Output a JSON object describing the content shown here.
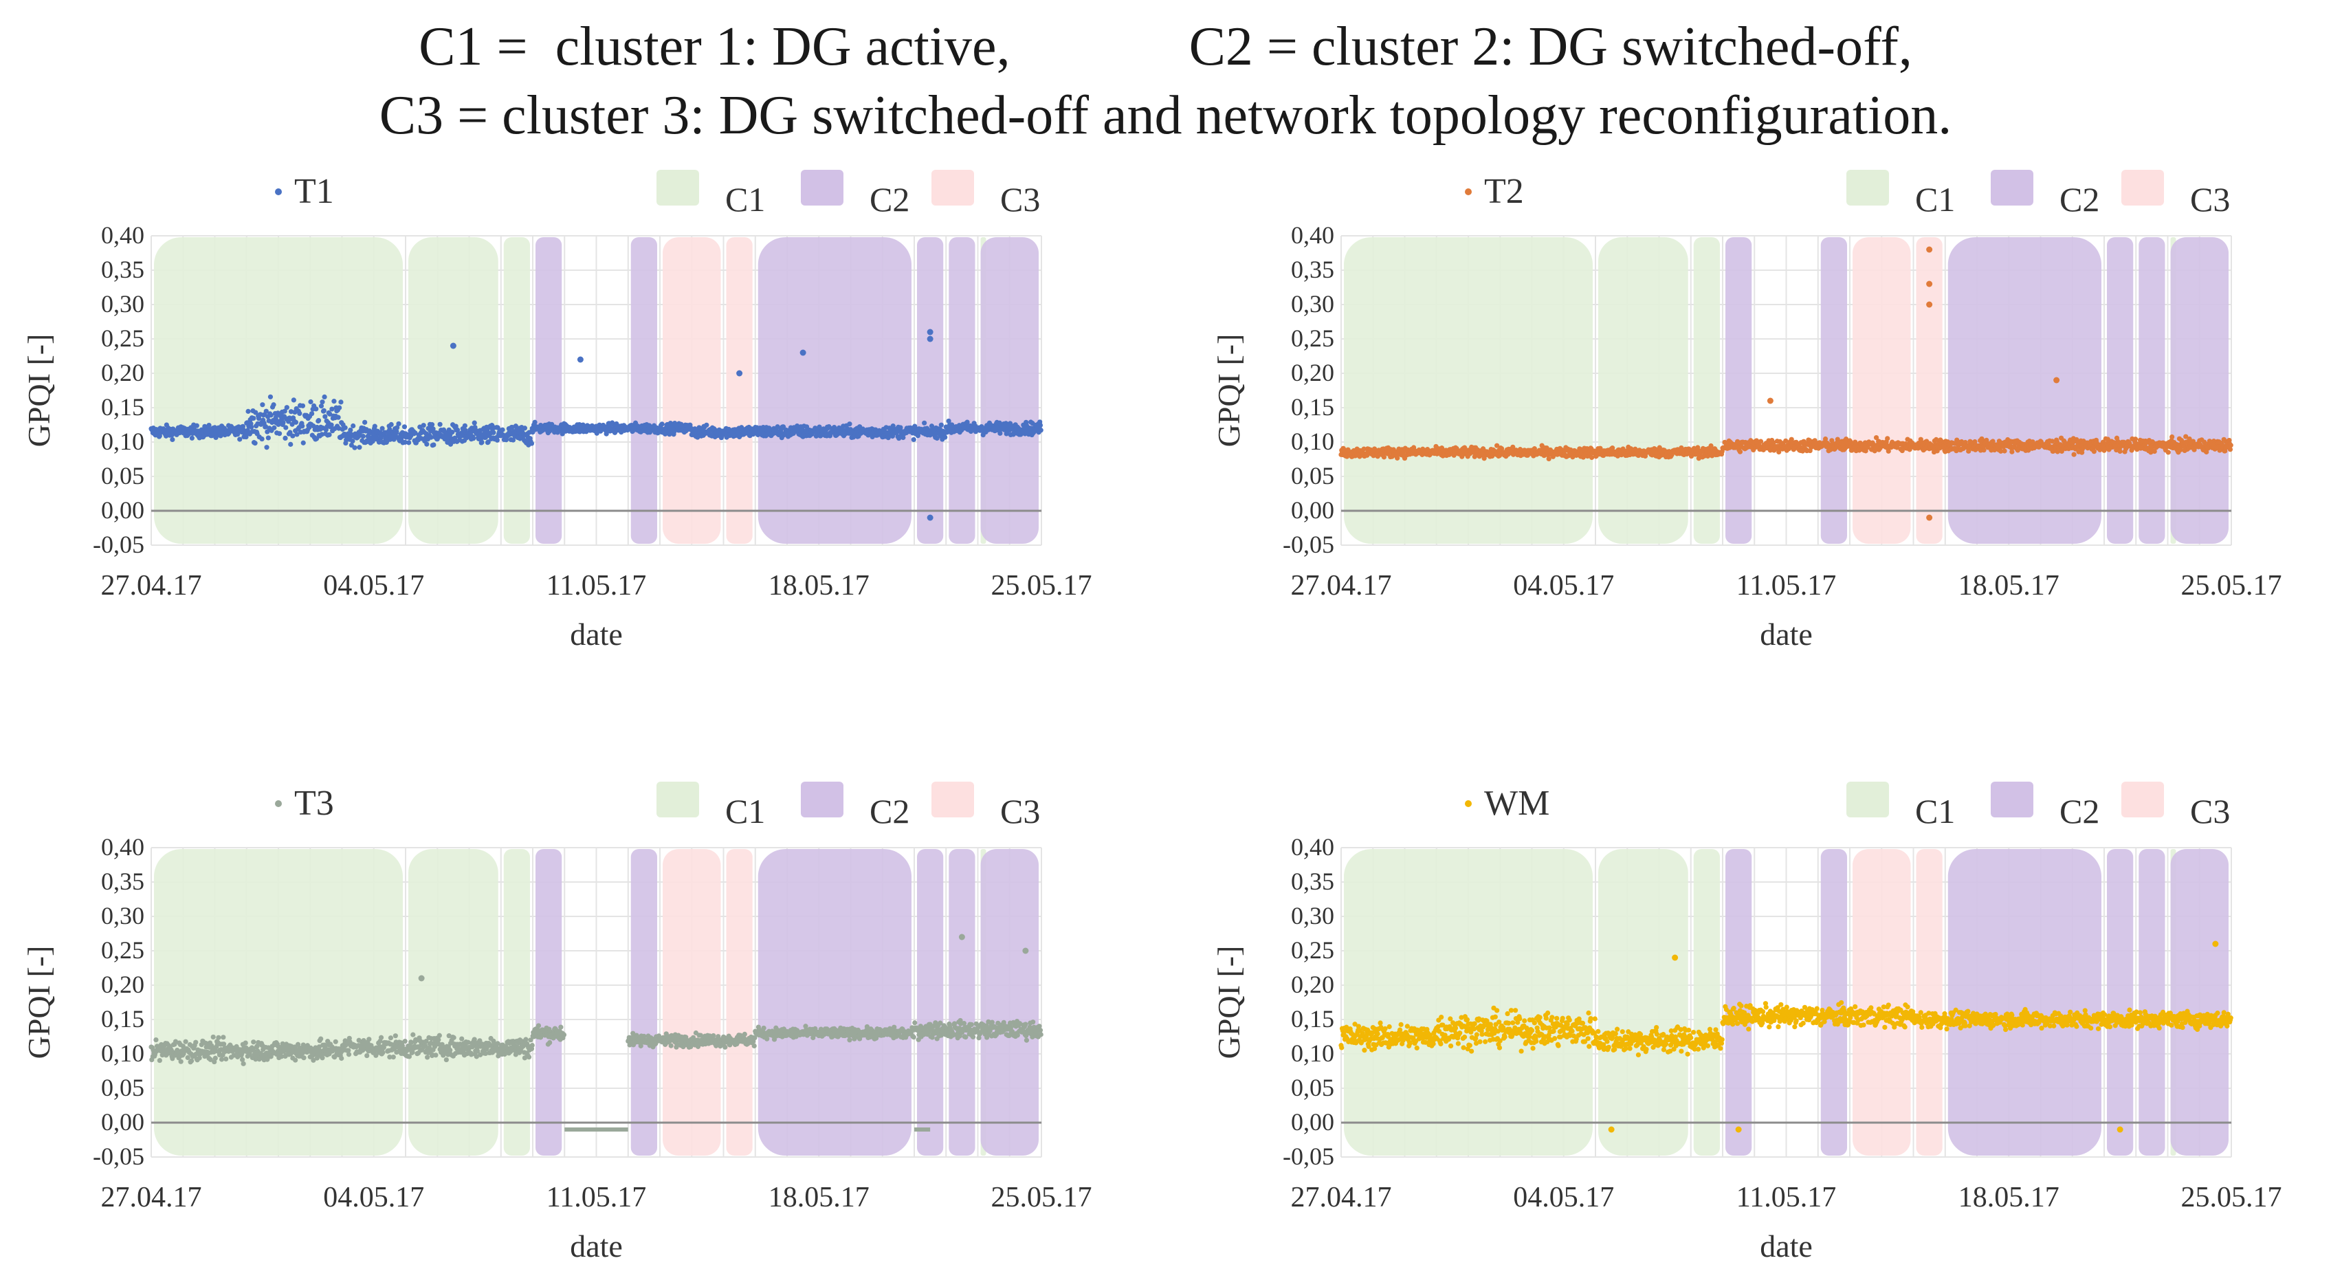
{
  "title": {
    "line1_part1": "C1 =  cluster 1: DG active,",
    "line1_part2": "C2 = cluster 2: DG switched-off,",
    "line2": "C3 = cluster 3: DG switched-off and network topology reconfiguration."
  },
  "legend_bands": [
    {
      "name": "C1",
      "color": "#e2efd9"
    },
    {
      "name": "C2",
      "color": "#d2c1e6"
    },
    {
      "name": "C3",
      "color": "#fde0e0"
    }
  ],
  "chart_data": [
    {
      "type": "scatter",
      "series_name": "T1",
      "color": "#4a72c4",
      "xlabel": "date",
      "ylabel": "GPQI [-]",
      "ylim": [
        -0.05,
        0.4
      ],
      "y_ticks": [
        "-0,05",
        "0,00",
        "0,05",
        "0,10",
        "0,15",
        "0,20",
        "0,25",
        "0,30",
        "0,35",
        "0,40"
      ],
      "x_ticks": [
        "27.04.17",
        "04.05.17",
        "11.05.17",
        "18.05.17",
        "25.05.17"
      ],
      "grid": true,
      "legend": "top",
      "clusters": [
        {
          "cluster": "C1",
          "from": "27.04.17",
          "to": "05.05.17"
        },
        {
          "cluster": "C1",
          "from": "05.05.17",
          "to": "08.05.17"
        },
        {
          "cluster": "C1",
          "from": "08.05.17",
          "to": "09.05.17"
        },
        {
          "cluster": "C2",
          "from": "09.05.17",
          "to": "10.05.17"
        },
        {
          "cluster": "C2",
          "from": "12.05.17",
          "to": "13.05.17"
        },
        {
          "cluster": "C3",
          "from": "13.05.17",
          "to": "15.05.17"
        },
        {
          "cluster": "C3",
          "from": "15.05.17",
          "to": "16.05.17"
        },
        {
          "cluster": "C2",
          "from": "16.05.17",
          "to": "21.05.17"
        },
        {
          "cluster": "C2",
          "from": "21.05.17",
          "to": "22.05.17"
        },
        {
          "cluster": "C2",
          "from": "22.05.17",
          "to": "23.05.17"
        },
        {
          "cluster": "C1",
          "from": "23.05.17",
          "to": "23.05.17"
        },
        {
          "cluster": "C2",
          "from": "23.05.17",
          "to": "25.05.17"
        }
      ],
      "segments": [
        {
          "from": "27.04.17",
          "to": "30.04.17",
          "level": 0.115,
          "spread": 0.015
        },
        {
          "from": "30.04.17",
          "to": "03.05.17",
          "level": 0.13,
          "spread": 0.05
        },
        {
          "from": "03.05.17",
          "to": "09.05.17",
          "level": 0.11,
          "spread": 0.025
        },
        {
          "from": "09.05.17",
          "to": "14.05.17",
          "level": 0.12,
          "spread": 0.012
        },
        {
          "from": "14.05.17",
          "to": "22.05.17",
          "level": 0.115,
          "spread": 0.015
        },
        {
          "from": "22.05.17",
          "to": "25.05.17",
          "level": 0.12,
          "spread": 0.015
        }
      ],
      "outliers": [
        {
          "date": "06.05.17",
          "value": 0.24
        },
        {
          "date": "10.05.17",
          "value": 0.22
        },
        {
          "date": "15.05.17",
          "value": 0.2
        },
        {
          "date": "17.05.17",
          "value": 0.23
        },
        {
          "date": "21.05.17",
          "value": 0.26
        },
        {
          "date": "21.05.17",
          "value": 0.25
        },
        {
          "date": "21.05.17",
          "value": -0.01
        }
      ]
    },
    {
      "type": "scatter",
      "series_name": "T2",
      "color": "#e07b3a",
      "xlabel": "date",
      "ylabel": "GPQI [-]",
      "ylim": [
        -0.05,
        0.4
      ],
      "y_ticks": [
        "-0,05",
        "0,00",
        "0,05",
        "0,10",
        "0,15",
        "0,20",
        "0,25",
        "0,30",
        "0,35",
        "0,40"
      ],
      "x_ticks": [
        "27.04.17",
        "04.05.17",
        "11.05.17",
        "18.05.17",
        "25.05.17"
      ],
      "grid": true,
      "legend": "top",
      "clusters": [
        {
          "cluster": "C1",
          "from": "27.04.17",
          "to": "05.05.17"
        },
        {
          "cluster": "C1",
          "from": "05.05.17",
          "to": "08.05.17"
        },
        {
          "cluster": "C1",
          "from": "08.05.17",
          "to": "09.05.17"
        },
        {
          "cluster": "C2",
          "from": "09.05.17",
          "to": "10.05.17"
        },
        {
          "cluster": "C2",
          "from": "12.05.17",
          "to": "13.05.17"
        },
        {
          "cluster": "C3",
          "from": "13.05.17",
          "to": "15.05.17"
        },
        {
          "cluster": "C3",
          "from": "15.05.17",
          "to": "16.05.17"
        },
        {
          "cluster": "C2",
          "from": "16.05.17",
          "to": "21.05.17"
        },
        {
          "cluster": "C2",
          "from": "21.05.17",
          "to": "22.05.17"
        },
        {
          "cluster": "C2",
          "from": "22.05.17",
          "to": "23.05.17"
        },
        {
          "cluster": "C1",
          "from": "23.05.17",
          "to": "23.05.17"
        },
        {
          "cluster": "C2",
          "from": "23.05.17",
          "to": "25.05.17"
        }
      ],
      "segments": [
        {
          "from": "27.04.17",
          "to": "09.05.17",
          "level": 0.085,
          "spread": 0.012
        },
        {
          "from": "09.05.17",
          "to": "15.05.17",
          "level": 0.095,
          "spread": 0.015
        },
        {
          "from": "15.05.17",
          "to": "25.05.17",
          "level": 0.095,
          "spread": 0.015
        }
      ],
      "outliers": [
        {
          "date": "15.05.17",
          "value": 0.38
        },
        {
          "date": "15.05.17",
          "value": 0.33
        },
        {
          "date": "15.05.17",
          "value": 0.3
        },
        {
          "date": "15.05.17",
          "value": -0.01
        },
        {
          "date": "19.05.17",
          "value": 0.19
        },
        {
          "date": "10.05.17",
          "value": 0.16
        }
      ]
    },
    {
      "type": "scatter",
      "series_name": "T3",
      "color": "#9aa89a",
      "xlabel": "date",
      "ylabel": "GPQI [-]",
      "ylim": [
        -0.05,
        0.4
      ],
      "y_ticks": [
        "-0,05",
        "0,00",
        "0,05",
        "0,10",
        "0,15",
        "0,20",
        "0,25",
        "0,30",
        "0,35",
        "0,40"
      ],
      "x_ticks": [
        "27.04.17",
        "04.05.17",
        "11.05.17",
        "18.05.17",
        "25.05.17"
      ],
      "grid": true,
      "legend": "top",
      "clusters": [
        {
          "cluster": "C1",
          "from": "27.04.17",
          "to": "05.05.17"
        },
        {
          "cluster": "C1",
          "from": "05.05.17",
          "to": "08.05.17"
        },
        {
          "cluster": "C1",
          "from": "08.05.17",
          "to": "09.05.17"
        },
        {
          "cluster": "C2",
          "from": "09.05.17",
          "to": "10.05.17"
        },
        {
          "cluster": "C2",
          "from": "12.05.17",
          "to": "13.05.17"
        },
        {
          "cluster": "C3",
          "from": "13.05.17",
          "to": "15.05.17"
        },
        {
          "cluster": "C3",
          "from": "15.05.17",
          "to": "16.05.17"
        },
        {
          "cluster": "C2",
          "from": "16.05.17",
          "to": "21.05.17"
        },
        {
          "cluster": "C2",
          "from": "21.05.17",
          "to": "22.05.17"
        },
        {
          "cluster": "C2",
          "from": "22.05.17",
          "to": "23.05.17"
        },
        {
          "cluster": "C1",
          "from": "23.05.17",
          "to": "23.05.17"
        },
        {
          "cluster": "C2",
          "from": "23.05.17",
          "to": "25.05.17"
        }
      ],
      "segments": [
        {
          "from": "27.04.17",
          "to": "03.05.17",
          "level": 0.105,
          "spread": 0.025
        },
        {
          "from": "03.05.17",
          "to": "09.05.17",
          "level": 0.11,
          "spread": 0.025
        },
        {
          "from": "09.05.17",
          "to": "10.05.17",
          "level": 0.13,
          "spread": 0.02
        },
        {
          "from": "12.05.17",
          "to": "16.05.17",
          "level": 0.12,
          "spread": 0.015
        },
        {
          "from": "16.05.17",
          "to": "21.05.17",
          "level": 0.13,
          "spread": 0.013
        },
        {
          "from": "21.05.17",
          "to": "25.05.17",
          "level": 0.135,
          "spread": 0.02
        }
      ],
      "flat_runs": [
        {
          "from": "10.05.17",
          "to": "12.05.17",
          "value": -0.01
        },
        {
          "from": "21.05.17",
          "to": "21.05.17",
          "value": -0.01
        }
      ],
      "outliers": [
        {
          "date": "22.05.17",
          "value": 0.27
        },
        {
          "date": "24.05.17",
          "value": 0.25
        },
        {
          "date": "05.05.17",
          "value": 0.21
        }
      ]
    },
    {
      "type": "scatter",
      "series_name": "WM",
      "color": "#f2b705",
      "xlabel": "date",
      "ylabel": "GPQI [-]",
      "ylim": [
        -0.05,
        0.4
      ],
      "y_ticks": [
        "-0,05",
        "0,00",
        "0,05",
        "0,10",
        "0,15",
        "0,20",
        "0,25",
        "0,30",
        "0,35",
        "0,40"
      ],
      "x_ticks": [
        "27.04.17",
        "04.05.17",
        "11.05.17",
        "18.05.17",
        "25.05.17"
      ],
      "grid": true,
      "legend": "top",
      "clusters": [
        {
          "cluster": "C1",
          "from": "27.04.17",
          "to": "05.05.17"
        },
        {
          "cluster": "C1",
          "from": "05.05.17",
          "to": "08.05.17"
        },
        {
          "cluster": "C1",
          "from": "08.05.17",
          "to": "09.05.17"
        },
        {
          "cluster": "C2",
          "from": "09.05.17",
          "to": "10.05.17"
        },
        {
          "cluster": "C2",
          "from": "12.05.17",
          "to": "13.05.17"
        },
        {
          "cluster": "C3",
          "from": "13.05.17",
          "to": "15.05.17"
        },
        {
          "cluster": "C3",
          "from": "15.05.17",
          "to": "16.05.17"
        },
        {
          "cluster": "C2",
          "from": "16.05.17",
          "to": "21.05.17"
        },
        {
          "cluster": "C2",
          "from": "21.05.17",
          "to": "22.05.17"
        },
        {
          "cluster": "C2",
          "from": "22.05.17",
          "to": "23.05.17"
        },
        {
          "cluster": "C1",
          "from": "23.05.17",
          "to": "23.05.17"
        },
        {
          "cluster": "C2",
          "from": "23.05.17",
          "to": "25.05.17"
        }
      ],
      "segments": [
        {
          "from": "27.04.17",
          "to": "30.04.17",
          "level": 0.125,
          "spread": 0.03
        },
        {
          "from": "30.04.17",
          "to": "05.05.17",
          "level": 0.135,
          "spread": 0.04
        },
        {
          "from": "05.05.17",
          "to": "09.05.17",
          "level": 0.12,
          "spread": 0.03
        },
        {
          "from": "09.05.17",
          "to": "15.05.17",
          "level": 0.155,
          "spread": 0.025
        },
        {
          "from": "15.05.17",
          "to": "25.05.17",
          "level": 0.15,
          "spread": 0.02
        }
      ],
      "outliers": [
        {
          "date": "07.05.17",
          "value": 0.24
        },
        {
          "date": "24.05.17",
          "value": 0.26
        },
        {
          "date": "21.05.17",
          "value": -0.01
        },
        {
          "date": "05.05.17",
          "value": -0.01
        },
        {
          "date": "09.05.17",
          "value": -0.01
        }
      ]
    }
  ]
}
